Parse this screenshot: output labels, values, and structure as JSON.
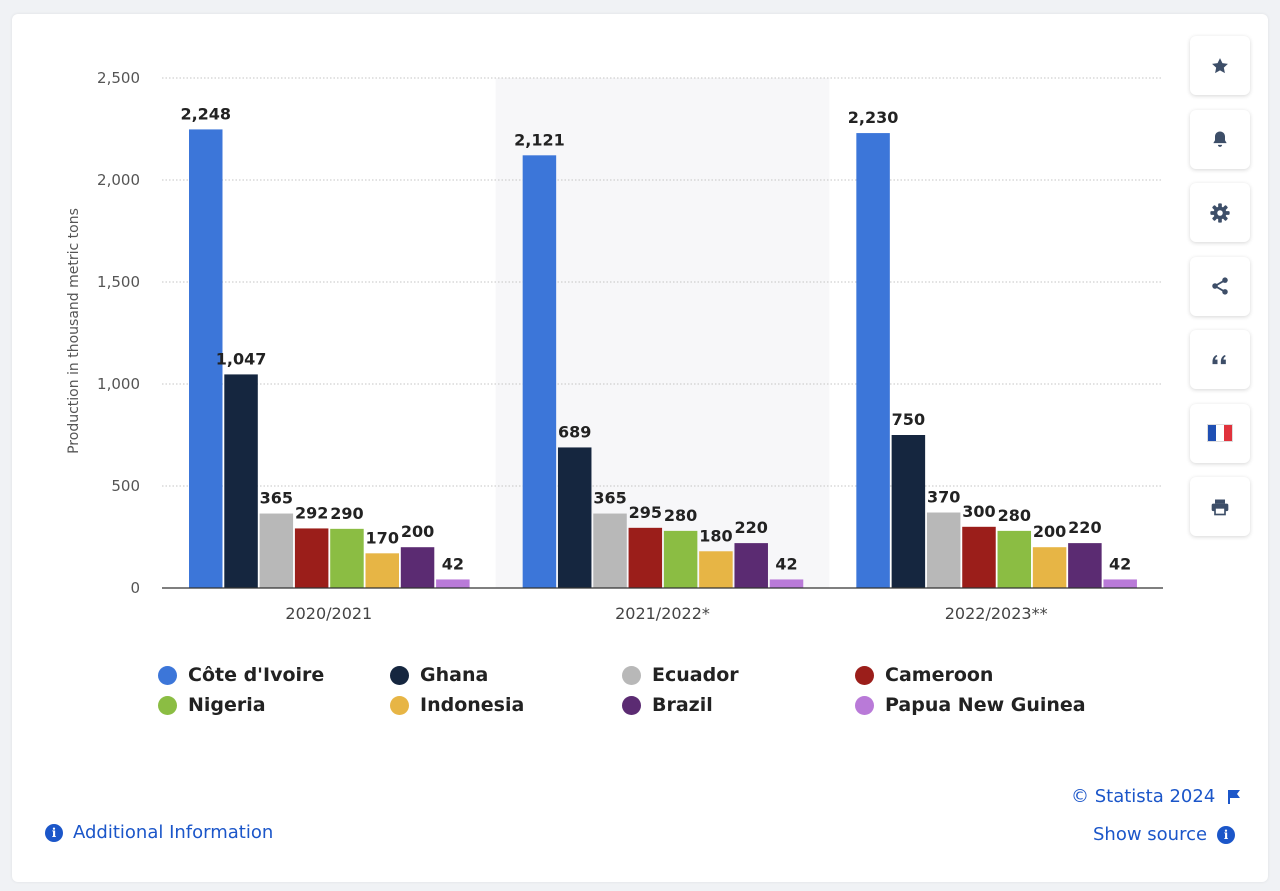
{
  "chart_data": {
    "type": "bar",
    "categories": [
      "2020/2021",
      "2021/2022*",
      "2022/2023**"
    ],
    "series": [
      {
        "name": "Côte d'Ivoire",
        "color": "#3c76d9",
        "values": [
          2248,
          2121,
          2230
        ],
        "labels": [
          "2,248",
          "2,121",
          "2,230"
        ]
      },
      {
        "name": "Ghana",
        "color": "#15263f",
        "values": [
          1047,
          689,
          750
        ],
        "labels": [
          "1,047",
          "689",
          "750"
        ]
      },
      {
        "name": "Ecuador",
        "color": "#b8b8b8",
        "values": [
          365,
          365,
          370
        ],
        "labels": [
          "365",
          "365",
          "370"
        ]
      },
      {
        "name": "Cameroon",
        "color": "#9b1e1a",
        "values": [
          292,
          295,
          300
        ],
        "labels": [
          "292",
          "295",
          "300"
        ]
      },
      {
        "name": "Nigeria",
        "color": "#8bbd43",
        "values": [
          290,
          280,
          280
        ],
        "labels": [
          "290",
          "280",
          "280"
        ]
      },
      {
        "name": "Indonesia",
        "color": "#e7b545",
        "values": [
          170,
          180,
          200
        ],
        "labels": [
          "170",
          "180",
          "200"
        ]
      },
      {
        "name": "Brazil",
        "color": "#5b2b72",
        "values": [
          200,
          220,
          220
        ],
        "labels": [
          "200",
          "220",
          "220"
        ]
      },
      {
        "name": "Papua New Guinea",
        "color": "#b97ad8",
        "values": [
          42,
          42,
          42
        ],
        "labels": [
          "42",
          "42",
          "42"
        ]
      }
    ],
    "ylabel": "Production in thousand metric tons",
    "ylim": [
      0,
      2500
    ],
    "yticks": [
      0,
      500,
      1000,
      1500,
      2000,
      2500
    ],
    "ytick_labels": [
      "0",
      "500",
      "1,000",
      "1,500",
      "2,000",
      "2,500"
    ],
    "grid": true,
    "legend_position": "bottom",
    "highlighted_category": "2021/2022*"
  },
  "sidebar": {
    "buttons": [
      {
        "icon": "star-icon"
      },
      {
        "icon": "bell-icon"
      },
      {
        "icon": "gear-icon"
      },
      {
        "icon": "share-icon"
      },
      {
        "icon": "quote-icon"
      },
      {
        "icon": "french-flag-icon"
      },
      {
        "icon": "print-icon"
      }
    ]
  },
  "footer": {
    "copyright": "© Statista 2024",
    "show_source": "Show source",
    "additional_info": "Additional Information"
  },
  "colors": {
    "accent": "#1b56c9",
    "icon": "#3d4e68"
  }
}
